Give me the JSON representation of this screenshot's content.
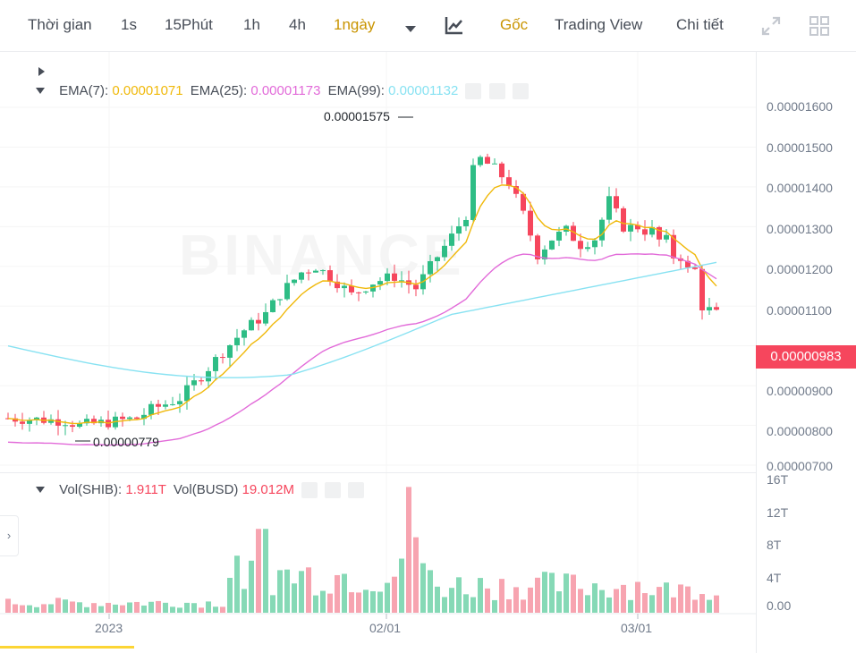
{
  "toolbar": {
    "time_label": "Thời gian",
    "intervals": [
      "1s",
      "15Phút",
      "1h",
      "4h",
      "1ngày"
    ],
    "active_interval": "1ngày",
    "original_label": "Gốc",
    "tradingview_label": "Trading View",
    "detail_label": "Chi tiết"
  },
  "ema_legend": {
    "ema7_label": "EMA(7):",
    "ema7_value": "0.00001071",
    "ema7_color": "#f0b90b",
    "ema25_label": "EMA(25):",
    "ema25_value": "0.00001173",
    "ema25_color": "#e26bd9",
    "ema99_label": "EMA(99):",
    "ema99_value": "0.00001132",
    "ema99_color": "#88e2f2"
  },
  "vol_legend": {
    "shib_label": "Vol(SHIB):",
    "shib_value": "1.911T",
    "busd_label": "Vol(BUSD)",
    "busd_value": "19.012M"
  },
  "price_axis": [
    "0.00001600",
    "0.00001500",
    "0.00001400",
    "0.00001300",
    "0.00001200",
    "0.00001100",
    "0.00000900",
    "0.00000800",
    "0.00000700"
  ],
  "current_price": "0.00000983",
  "high_label": "0.00001575",
  "low_label": "0.00000779",
  "volume_axis": [
    "16T",
    "12T",
    "8T",
    "4T",
    "0.00"
  ],
  "time_axis": [
    "2023",
    "02/01",
    "03/01"
  ],
  "watermark": "BINANCE",
  "colors": {
    "up": "#2ebd85",
    "down": "#f6465d",
    "accent": "#c99400"
  }
}
